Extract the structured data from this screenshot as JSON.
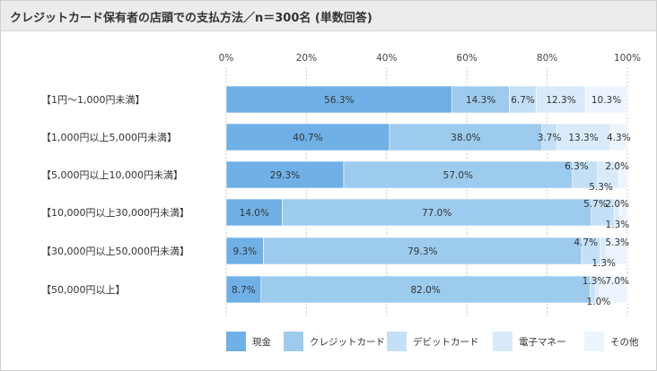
{
  "title": "クレジットカード保有者の店頭での支払方法／n＝300名 (単数回答)",
  "chart_data": {
    "type": "bar",
    "orientation": "horizontal",
    "stacked": true,
    "percent": true,
    "title": "クレジットカード保有者の店頭での支払方法／n＝300名 (単数回答)",
    "xlim": [
      0,
      100
    ],
    "x_ticks": [
      "0%",
      "20%",
      "40%",
      "60%",
      "80%",
      "100%"
    ],
    "grid": true,
    "legend_position": "bottom",
    "categories": [
      "【1円～1,000円未満】",
      "【1,000円以上5,000円未満】",
      "【5,000円以上10,000円未満】",
      "【10,000円以上30,000円未満】",
      "【30,000円以上50,000円未満】",
      "【50,000円以上】"
    ],
    "series": [
      {
        "name": "現金",
        "color": "#6fb0e6",
        "values": [
          56.3,
          40.7,
          29.3,
          14.0,
          9.3,
          8.7
        ]
      },
      {
        "name": "クレジットカード",
        "color": "#9ccbee",
        "values": [
          14.3,
          38.0,
          57.0,
          77.0,
          79.3,
          82.0
        ]
      },
      {
        "name": "デビットカード",
        "color": "#c4e0f6",
        "values": [
          6.7,
          3.7,
          6.3,
          5.7,
          4.7,
          1.3
        ]
      },
      {
        "name": "電子マネー",
        "color": "#d9ebfa",
        "values": [
          12.3,
          13.3,
          5.3,
          1.3,
          1.3,
          1.0
        ]
      },
      {
        "name": "その他",
        "color": "#ecf5fd",
        "values": [
          10.3,
          4.3,
          2.0,
          2.0,
          5.3,
          7.0
        ]
      }
    ],
    "value_labels": [
      [
        "56.3%",
        "14.3%",
        "6.7%",
        "12.3%",
        "10.3%"
      ],
      [
        "40.7%",
        "38.0%",
        "3.7%",
        "13.3%",
        "4.3%"
      ],
      [
        "29.3%",
        "57.0%",
        "6.3%",
        "5.3%",
        "2.0%"
      ],
      [
        "14.0%",
        "77.0%",
        "5.7%",
        "1.3%",
        "2.0%"
      ],
      [
        "9.3%",
        "79.3%",
        "4.7%",
        "1.3%",
        "5.3%"
      ],
      [
        "8.7%",
        "82.0%",
        "1.3%",
        "1.0%",
        "7.0%"
      ]
    ]
  }
}
